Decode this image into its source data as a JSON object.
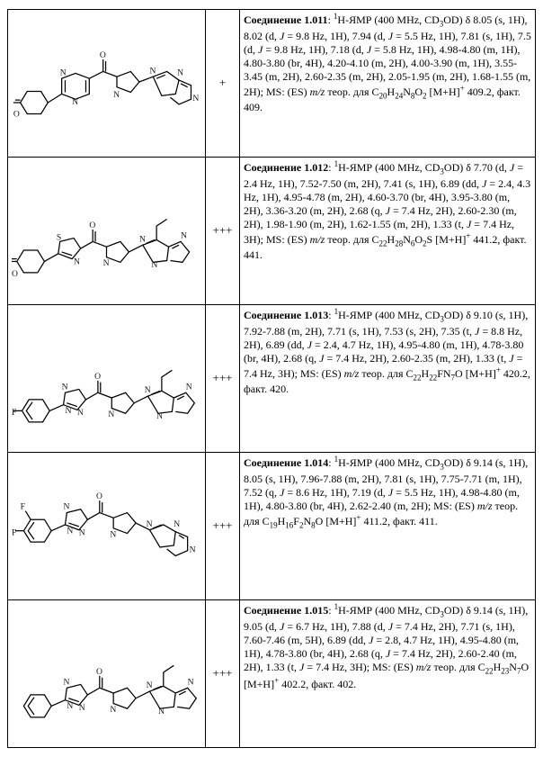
{
  "rows": [
    {
      "id": "1.011",
      "activity": "+",
      "title_prefix": "Соединение 1.011",
      "body": ": <sup>1</sup>H-ЯМР (400 MHz, CD<sub>3</sub>OD) δ 8.05 (s, 1H), 8.02 (d, <i>J</i> = 9.8 Hz, 1H), 7.94 (d, <i>J</i> = 5.5 Hz, 1H), 7.81 (s, 1H), 7.5 (d, <i>J</i> = 9.8 Hz, 1H), 7.18 (d, <i>J</i> = 5.8 Hz, 1H), 4.98-4.80 (m, 1H), 4.80-3.80 (br, 4H), 4.20-4.10 (m, 2H), 4.00-3.90 (m, 1H), 3.55-3.45 (m, 2H), 2.60-2.35 (m, 2H), 2.05-1.95 (m, 2H), 1.68-1.55 (m, 2H); MS: (ES) <i>m/z</i> теор. для C<sub>20</sub>H<sub>24</sub>N<sub>8</sub>O<sub>2</sub> [M+H]<sup>+</sup> 409.2, факт. 409."
    },
    {
      "id": "1.012",
      "activity": "+++",
      "title_prefix": "Соединение 1.012",
      "body": ": <sup>1</sup>H-ЯМР (400 MHz, CD<sub>3</sub>OD) δ 7.70 (d, <i>J</i> = 2.4 Hz, 1H), 7.52-7.50 (m, 2H), 7.41 (s, 1H), 6.89 (dd, <i>J</i> = 2.4, 4.3 Hz, 1H), 4.95-4.78 (m, 2H), 4.60-3.70 (br, 4H), 3.95-3.80 (m, 2H), 3.36-3.20 (m, 2H), 2.68 (q, <i>J</i> = 7.4 Hz, 2H), 2.60-2.30 (m, 2H), 1.98-1.90 (m, 2H), 1.62-1.55 (m, 2H), 1.33 (t, <i>J</i> = 7.4 Hz, 3H); MS: (ES) <i>m/z</i> теор. для C<sub>22</sub>H<sub>28</sub>N<sub>6</sub>O<sub>2</sub>S [M+H]<sup>+</sup> 441.2, факт. 441."
    },
    {
      "id": "1.013",
      "activity": "+++",
      "title_prefix": "Соединение 1.013",
      "body": ": <sup>1</sup>H-ЯМР (400 MHz, CD<sub>3</sub>OD) δ 9.10 (s, 1H), 7.92-7.88 (m, 2H), 7.71 (s, 1H), 7.53 (s, 2H), 7.35 (t, <i>J</i> = 8.8 Hz, 2H), 6.89 (dd, <i>J</i> = 2.4, 4.7 Hz, 1H), 4.95-4.80 (m, 1H), 4.78-3.80 (br, 4H), 2.68 (q, <i>J</i> = 7.4 Hz, 2H), 2.60-2.35 (m, 2H), 1.33 (t, <i>J</i> = 7.4 Hz, 3H); MS: (ES) <i>m/z</i> теор. для C<sub>22</sub>H<sub>22</sub>FN<sub>7</sub>O [M+H]<sup>+</sup> 420.2, факт. 420."
    },
    {
      "id": "1.014",
      "activity": "+++",
      "title_prefix": "Соединение 1.014",
      "body": ": <sup>1</sup>H-ЯМР (400 MHz, CD<sub>3</sub>OD) δ 9.14 (s, 1H), 8.05 (s, 1H), 7.96-7.88 (m, 2H), 7.81 (s, 1H), 7.75-7.71 (m, 1H), 7.52 (q, <i>J</i> = 8.6 Hz, 1H), 7.19 (d, <i>J</i> = 5.5 Hz, 1H), 4.98-4.80 (m, 1H), 4.80-3.80 (br, 4H), 2.62-2.40 (m, 2H); MS: (ES) <i>m/z</i> теор. для C<sub>19</sub>H<sub>16</sub>F<sub>2</sub>N<sub>8</sub>O [M+H]<sup>+</sup> 411.2, факт. 411."
    },
    {
      "id": "1.015",
      "activity": "+++",
      "title_prefix": "Соединение 1.015",
      "body": ": <sup>1</sup>H-ЯМР (400 MHz, CD<sub>3</sub>OD) δ 9.14 (s, 1H), 9.05 (d, <i>J</i> = 6.7 Hz, 1H), 7.88 (d, <i>J</i> = 7.4 Hz, 2H), 7.71 (s, 1H), 7.60-7.46 (m, 5H), 6.89 (dd, <i>J</i> = 2.8, 4.7 Hz, 1H), 4.95-4.80 (m, 1H), 4.78-3.80 (br, 4H), 2.68 (q, <i>J</i> = 7.4 Hz, 2H), 2.60-2.40 (m, 2H), 1.33 (t, <i>J</i> = 7.4 Hz, 3H); MS: (ES) <i>m/z</i> теор. для C<sub>22</sub>H<sub>23</sub>N<sub>7</sub>O [M+H]<sup>+</sup> 402.2, факт. 402."
    }
  ]
}
